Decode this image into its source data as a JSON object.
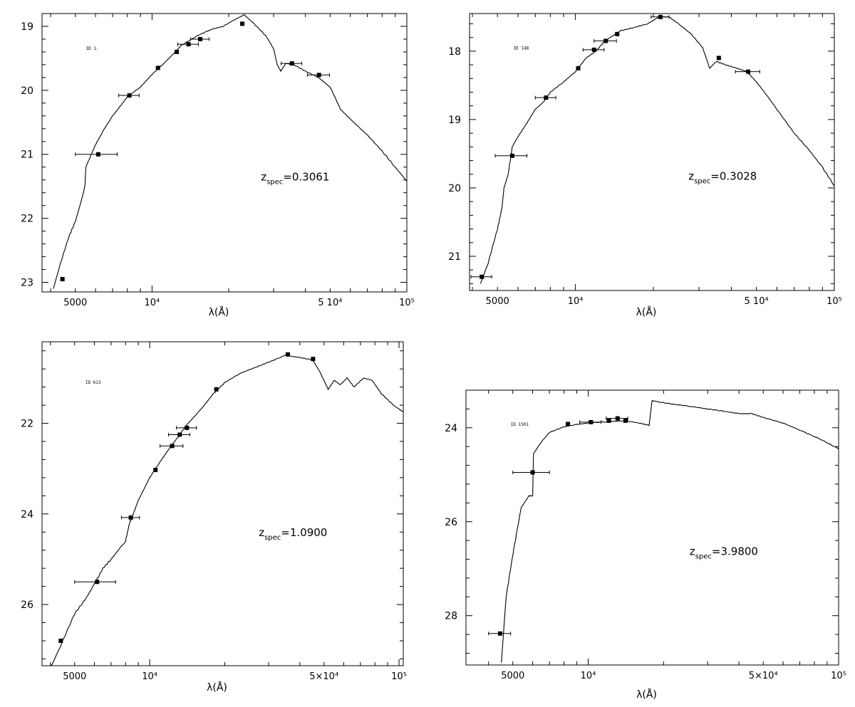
{
  "chart_data": [
    {
      "type": "scatter",
      "id_label": "ID 1.",
      "xlabel": "λ(Å)",
      "ylabel": "",
      "xscale": "log",
      "yinverted": true,
      "xlim": [
        3700,
        100000
      ],
      "ylim": [
        23.15,
        18.8
      ],
      "xticks": [
        {
          "v": 5000,
          "t": "5000"
        },
        {
          "v": 10000,
          "t": "10⁴"
        },
        {
          "v": 50000,
          "t": "5  10⁴"
        },
        {
          "v": 100000,
          "t": "10⁵"
        }
      ],
      "yticks": [
        19,
        20,
        21,
        22,
        23
      ],
      "annotation": {
        "main": "z",
        "sub": "spec",
        "value": "=0.3061"
      },
      "points": [
        {
          "x": 4450,
          "y": 22.95,
          "xerr": 0
        },
        {
          "x": 6150,
          "y": 21.0,
          "xerr": 1150
        },
        {
          "x": 8150,
          "y": 20.08,
          "xerr": 750
        },
        {
          "x": 10550,
          "y": 19.65,
          "xerr": 0
        },
        {
          "x": 12500,
          "y": 19.4,
          "xerr": 0
        },
        {
          "x": 13900,
          "y": 19.28,
          "xerr": 1300
        },
        {
          "x": 15450,
          "y": 19.2,
          "xerr": 1300
        },
        {
          "x": 22600,
          "y": 18.96,
          "xerr": 0
        },
        {
          "x": 35400,
          "y": 19.58,
          "xerr": 3300
        },
        {
          "x": 45200,
          "y": 19.76,
          "xerr": 4500
        }
      ],
      "model": [
        [
          4100,
          23.1
        ],
        [
          4300,
          22.8
        ],
        [
          4700,
          22.3
        ],
        [
          5000,
          22.05
        ],
        [
          5300,
          21.7
        ],
        [
          5450,
          21.5
        ],
        [
          5500,
          21.2
        ],
        [
          5700,
          21.05
        ],
        [
          6000,
          20.85
        ],
        [
          6500,
          20.6
        ],
        [
          7000,
          20.4
        ],
        [
          7500,
          20.25
        ],
        [
          8000,
          20.1
        ],
        [
          9000,
          19.95
        ],
        [
          10000,
          19.75
        ],
        [
          11000,
          19.6
        ],
        [
          12000,
          19.45
        ],
        [
          13000,
          19.3
        ],
        [
          15000,
          19.15
        ],
        [
          17000,
          19.05
        ],
        [
          19000,
          19.0
        ],
        [
          21000,
          18.9
        ],
        [
          23000,
          18.82
        ],
        [
          25000,
          18.95
        ],
        [
          28000,
          19.15
        ],
        [
          30000,
          19.35
        ],
        [
          31000,
          19.6
        ],
        [
          32000,
          19.7
        ],
        [
          33500,
          19.58
        ],
        [
          36000,
          19.6
        ],
        [
          40000,
          19.7
        ],
        [
          45000,
          19.8
        ],
        [
          50000,
          19.95
        ],
        [
          55000,
          20.3
        ],
        [
          60000,
          20.45
        ],
        [
          70000,
          20.7
        ],
        [
          80000,
          20.95
        ],
        [
          90000,
          21.2
        ],
        [
          100000,
          21.42
        ]
      ]
    },
    {
      "type": "scatter",
      "id_label": "ID 148",
      "xlabel": "λ(Å)",
      "ylabel": "",
      "xscale": "log",
      "yinverted": true,
      "xlim": [
        3900,
        100000
      ],
      "ylim": [
        21.5,
        17.45
      ],
      "xticks": [
        {
          "v": 5000,
          "t": "5000"
        },
        {
          "v": 10000,
          "t": "10⁴"
        },
        {
          "v": 50000,
          "t": "5  10⁴"
        },
        {
          "v": 100000,
          "t": "10⁵"
        }
      ],
      "yticks": [
        18,
        19,
        20,
        21
      ],
      "annotation": {
        "main": "z",
        "sub": "spec",
        "value": "=0.3028"
      },
      "points": [
        {
          "x": 4350,
          "y": 21.3,
          "xerr": 400
        },
        {
          "x": 5700,
          "y": 19.53,
          "xerr": 800
        },
        {
          "x": 7700,
          "y": 18.68,
          "xerr": 700
        },
        {
          "x": 10250,
          "y": 18.25,
          "xerr": 0
        },
        {
          "x": 11800,
          "y": 17.98,
          "xerr": 1100
        },
        {
          "x": 13100,
          "y": 17.85,
          "xerr": 1300
        },
        {
          "x": 14500,
          "y": 17.75,
          "xerr": 0
        },
        {
          "x": 21300,
          "y": 17.5,
          "xerr": 1700
        },
        {
          "x": 35800,
          "y": 18.1,
          "xerr": 0
        },
        {
          "x": 46500,
          "y": 18.3,
          "xerr": 5000
        }
      ],
      "model": [
        [
          4300,
          21.4
        ],
        [
          4600,
          21.1
        ],
        [
          5000,
          20.6
        ],
        [
          5200,
          20.3
        ],
        [
          5300,
          20.0
        ],
        [
          5500,
          19.8
        ],
        [
          5700,
          19.4
        ],
        [
          6000,
          19.25
        ],
        [
          6500,
          19.05
        ],
        [
          7000,
          18.85
        ],
        [
          7500,
          18.75
        ],
        [
          8000,
          18.6
        ],
        [
          9000,
          18.45
        ],
        [
          10000,
          18.3
        ],
        [
          11000,
          18.1
        ],
        [
          12000,
          18.0
        ],
        [
          13000,
          17.85
        ],
        [
          15000,
          17.7
        ],
        [
          17000,
          17.65
        ],
        [
          19000,
          17.6
        ],
        [
          21000,
          17.5
        ],
        [
          23000,
          17.5
        ],
        [
          25000,
          17.6
        ],
        [
          28000,
          17.75
        ],
        [
          31000,
          17.95
        ],
        [
          33000,
          18.25
        ],
        [
          35000,
          18.15
        ],
        [
          38000,
          18.2
        ],
        [
          42000,
          18.25
        ],
        [
          46000,
          18.3
        ],
        [
          50000,
          18.45
        ],
        [
          55000,
          18.65
        ],
        [
          60000,
          18.85
        ],
        [
          70000,
          19.2
        ],
        [
          80000,
          19.45
        ],
        [
          90000,
          19.7
        ],
        [
          100000,
          19.97
        ]
      ]
    },
    {
      "type": "scatter",
      "id_label": "ID 613",
      "xlabel": "λ(Å)",
      "ylabel": "",
      "xscale": "log",
      "yinverted": true,
      "xlim": [
        3700,
        104000
      ],
      "ylim": [
        27.35,
        20.2
      ],
      "xticks": [
        {
          "v": 5000,
          "t": "5000"
        },
        {
          "v": 10000,
          "t": "10⁴"
        },
        {
          "v": 50000,
          "t": "5×10⁴"
        },
        {
          "v": 100000,
          "t": "10⁵"
        }
      ],
      "yticks": [
        22,
        24,
        26
      ],
      "annotation": {
        "main": "z",
        "sub": "spec",
        "value": "=1.0900"
      },
      "points": [
        {
          "x": 4400,
          "y": 26.8,
          "xerr": 0
        },
        {
          "x": 6150,
          "y": 25.5,
          "xerr": 1150
        },
        {
          "x": 8400,
          "y": 24.08,
          "xerr": 700
        },
        {
          "x": 10550,
          "y": 23.03,
          "xerr": 0
        },
        {
          "x": 12300,
          "y": 22.5,
          "xerr": 1300
        },
        {
          "x": 13200,
          "y": 22.25,
          "xerr": 1300
        },
        {
          "x": 14100,
          "y": 22.1,
          "xerr": 1300
        },
        {
          "x": 18500,
          "y": 21.25,
          "xerr": 0
        },
        {
          "x": 35800,
          "y": 20.48,
          "xerr": 0
        },
        {
          "x": 45200,
          "y": 20.58,
          "xerr": 0
        }
      ],
      "model": [
        [
          4000,
          27.4
        ],
        [
          4400,
          26.9
        ],
        [
          5000,
          26.2
        ],
        [
          5500,
          25.9
        ],
        [
          6000,
          25.55
        ],
        [
          6500,
          25.2
        ],
        [
          7000,
          25.0
        ],
        [
          8000,
          24.6
        ],
        [
          8300,
          24.2
        ],
        [
          8600,
          24.0
        ],
        [
          9000,
          23.7
        ],
        [
          10000,
          23.2
        ],
        [
          11000,
          22.85
        ],
        [
          12000,
          22.55
        ],
        [
          13000,
          22.3
        ],
        [
          14000,
          22.05
        ],
        [
          16000,
          21.7
        ],
        [
          18000,
          21.35
        ],
        [
          20000,
          21.1
        ],
        [
          23000,
          20.9
        ],
        [
          27000,
          20.75
        ],
        [
          30000,
          20.65
        ],
        [
          35000,
          20.5
        ],
        [
          40000,
          20.55
        ],
        [
          45000,
          20.6
        ],
        [
          48000,
          20.85
        ],
        [
          52000,
          21.25
        ],
        [
          55000,
          21.05
        ],
        [
          58000,
          21.15
        ],
        [
          62000,
          21.0
        ],
        [
          66000,
          21.2
        ],
        [
          72000,
          21.0
        ],
        [
          78000,
          21.05
        ],
        [
          85000,
          21.35
        ],
        [
          95000,
          21.6
        ],
        [
          104000,
          21.75
        ]
      ]
    },
    {
      "type": "scatter",
      "id_label": "ID 1501",
      "xlabel": "λ(Å)",
      "ylabel": "",
      "xscale": "log",
      "yinverted": true,
      "xlim": [
        3250,
        100000
      ],
      "ylim": [
        29.05,
        23.2
      ],
      "xticks": [
        {
          "v": 5000,
          "t": "5000"
        },
        {
          "v": 10000,
          "t": "10⁴"
        },
        {
          "v": 50000,
          "t": "5×10⁴"
        },
        {
          "v": 100000,
          "t": "10⁵"
        }
      ],
      "yticks": [
        24,
        26,
        28
      ],
      "annotation": {
        "main": "z",
        "sub": "spec",
        "value": "=3.9800"
      },
      "points": [
        {
          "x": 4450,
          "y": 28.38,
          "xerr": 450
        },
        {
          "x": 6000,
          "y": 24.95,
          "xerr": 1000
        },
        {
          "x": 8300,
          "y": 23.92,
          "xerr": 0
        },
        {
          "x": 10250,
          "y": 23.88,
          "xerr": 1000
        },
        {
          "x": 12100,
          "y": 23.85,
          "xerr": 0
        },
        {
          "x": 13100,
          "y": 23.8,
          "xerr": 1300
        },
        {
          "x": 14100,
          "y": 23.85,
          "xerr": 0
        }
      ],
      "model": [
        [
          4500,
          29.0
        ],
        [
          4700,
          27.6
        ],
        [
          5000,
          26.7
        ],
        [
          5400,
          25.7
        ],
        [
          5800,
          25.45
        ],
        [
          6000,
          25.45
        ],
        [
          6050,
          24.55
        ],
        [
          6500,
          24.3
        ],
        [
          7000,
          24.1
        ],
        [
          8000,
          23.98
        ],
        [
          9000,
          23.93
        ],
        [
          10000,
          23.9
        ],
        [
          12000,
          23.87
        ],
        [
          14000,
          23.85
        ],
        [
          16000,
          23.9
        ],
        [
          17500,
          23.95
        ],
        [
          18000,
          23.42
        ],
        [
          19000,
          23.45
        ],
        [
          22000,
          23.5
        ],
        [
          26000,
          23.55
        ],
        [
          30000,
          23.6
        ],
        [
          35000,
          23.65
        ],
        [
          40000,
          23.7
        ],
        [
          45000,
          23.7
        ],
        [
          50000,
          23.78
        ],
        [
          60000,
          23.9
        ],
        [
          70000,
          24.05
        ],
        [
          85000,
          24.25
        ],
        [
          100000,
          24.45
        ]
      ]
    }
  ]
}
